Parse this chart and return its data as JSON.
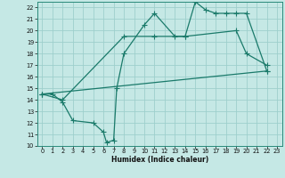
{
  "xlabel": "Humidex (Indice chaleur)",
  "bg_color": "#c5e8e5",
  "line_color": "#1a7a6a",
  "grid_color": "#9ecfcc",
  "xlim": [
    -0.5,
    23.5
  ],
  "ylim": [
    10,
    22.5
  ],
  "xticks": [
    0,
    1,
    2,
    3,
    4,
    5,
    6,
    7,
    8,
    9,
    10,
    11,
    12,
    13,
    14,
    15,
    16,
    17,
    18,
    19,
    20,
    21,
    22,
    23
  ],
  "yticks": [
    10,
    11,
    12,
    13,
    14,
    15,
    16,
    17,
    18,
    19,
    20,
    21,
    22
  ],
  "line1_x": [
    0,
    1,
    2,
    3,
    5,
    6,
    6.3,
    7.0,
    7.3,
    8,
    10,
    11,
    13,
    14,
    15,
    16,
    17,
    18,
    19,
    20,
    22
  ],
  "line1_y": [
    14.5,
    14.5,
    13.8,
    12.2,
    12.0,
    11.2,
    10.3,
    10.5,
    15.0,
    18.0,
    20.5,
    21.5,
    19.5,
    19.5,
    22.5,
    21.8,
    21.5,
    21.5,
    21.5,
    21.5,
    16.5
  ],
  "line2_x": [
    0,
    2,
    8,
    11,
    14,
    19,
    20,
    22
  ],
  "line2_y": [
    14.5,
    14.0,
    19.5,
    19.5,
    19.5,
    20.0,
    18.0,
    17.0
  ],
  "line3_x": [
    0,
    22
  ],
  "line3_y": [
    14.5,
    16.5
  ],
  "xlabel_fontsize": 5.5,
  "tick_fontsize": 4.8
}
